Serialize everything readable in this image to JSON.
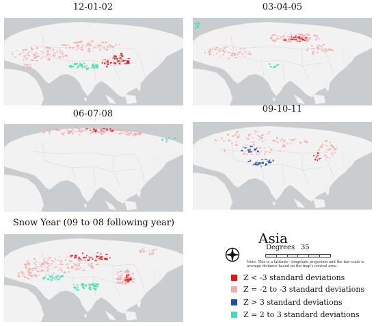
{
  "panels": [
    {
      "title": "12-01-02"
    },
    {
      "title": "03-04-05"
    },
    {
      "title": "06-07-08"
    },
    {
      "title": "09-10-11"
    },
    {
      "title": "Snow Year  (09 to 08 following year)"
    }
  ],
  "legend": {
    "region": "Asia",
    "scale_label": "Degrees",
    "scale_value": "35",
    "note": "Note: This is a latitude—longitude projection and the bar scale is average distance based on the map's central area.",
    "items": [
      {
        "label": "Z < -3 standard deviations",
        "color": "#ee1111"
      },
      {
        "label": "Z = -2 to -3 standard deviations",
        "color": "#f7a8a8"
      },
      {
        "label": "Z > 3 standard deviations",
        "color": "#1f4fae"
      },
      {
        "label": "Z = 2 to 3 standard deviations",
        "color": "#3ce0b0"
      }
    ]
  },
  "colors": {
    "ocean": "#c9cdcf",
    "land": "#f2f2f2",
    "border": "#d4d4d4"
  },
  "icons": {
    "compass": "north-arrow-compass-icon"
  }
}
